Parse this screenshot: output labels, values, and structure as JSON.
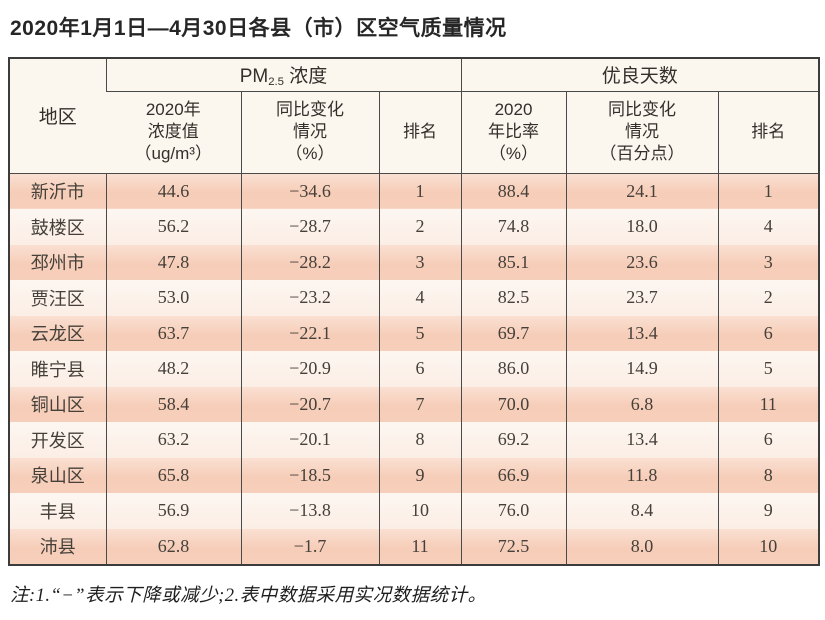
{
  "title": "2020年1月1日—4月30日各县（市）区空气质量情况",
  "table": {
    "region_header": "地区",
    "pm_group": {
      "prefix": "PM",
      "subscript": "2.5",
      "suffix": " 浓度"
    },
    "good_days_group": "优良天数",
    "subheaders": {
      "pm_value": "2020年\n浓度值\n（ug/m³）",
      "pm_change": "同比变化\n情况\n（%）",
      "pm_rank": "排名",
      "rate": "2020\n年比率\n（%）",
      "rate_change": "同比变化\n情况\n（百分点）",
      "rate_rank": "排名"
    },
    "rows": [
      [
        "新沂市",
        "44.6",
        "−34.6",
        "1",
        "88.4",
        "24.1",
        "1"
      ],
      [
        "鼓楼区",
        "56.2",
        "−28.7",
        "2",
        "74.8",
        "18.0",
        "4"
      ],
      [
        "邳州市",
        "47.8",
        "−28.2",
        "3",
        "85.1",
        "23.6",
        "3"
      ],
      [
        "贾汪区",
        "53.0",
        "−23.2",
        "4",
        "82.5",
        "23.7",
        "2"
      ],
      [
        "云龙区",
        "63.7",
        "−22.1",
        "5",
        "69.7",
        "13.4",
        "6"
      ],
      [
        "睢宁县",
        "48.2",
        "−20.9",
        "6",
        "86.0",
        "14.9",
        "5"
      ],
      [
        "铜山区",
        "58.4",
        "−20.7",
        "7",
        "70.0",
        "6.8",
        "11"
      ],
      [
        "开发区",
        "63.2",
        "−20.1",
        "8",
        "69.2",
        "13.4",
        "6"
      ],
      [
        "泉山区",
        "65.8",
        "−18.5",
        "9",
        "66.9",
        "11.8",
        "8"
      ],
      [
        "丰县",
        "56.9",
        "−13.8",
        "10",
        "76.0",
        "8.4",
        "9"
      ],
      [
        "沛县",
        "62.8",
        "−1.7",
        "11",
        "72.5",
        "8.0",
        "10"
      ]
    ]
  },
  "footnote": "注:1.“−”表示下降或减少;2.表中数据采用实况数据统计。",
  "colors": {
    "row_odd": "#f6cdb8",
    "row_even": "#fbeee5",
    "header_bg": "#fbf6ee",
    "border": "#4a4a4a",
    "text": "#45403a"
  }
}
